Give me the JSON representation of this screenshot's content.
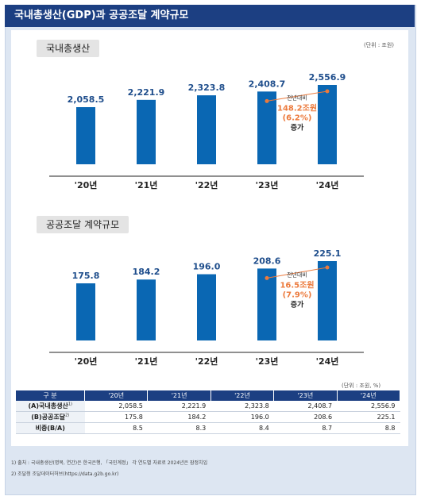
{
  "title": "국내총생산(GDP)과 공공조달 계약규모",
  "unit_top": "(단위 : 조원)",
  "unit_table": "(단위 : 조원, %)",
  "chart_data": [
    {
      "type": "bar",
      "title": "국내총생산",
      "categories": [
        "'20년",
        "'21년",
        "'22년",
        "'23년",
        "'24년"
      ],
      "values": [
        2058.5,
        2221.9,
        2323.8,
        2408.7,
        2556.9
      ],
      "value_labels": [
        "2,058.5",
        "2,221.9",
        "2,323.8",
        "2,408.7",
        "2,556.9"
      ],
      "annotation": {
        "line1": "전년대비",
        "line2": "148.2조원",
        "line3": "(6.2%)",
        "line4": "증가"
      },
      "color": "#0a67b3",
      "highlight_color": "#ec7a3c"
    },
    {
      "type": "bar",
      "title": "공공조달 계약규모",
      "categories": [
        "'20년",
        "'21년",
        "'22년",
        "'23년",
        "'24년"
      ],
      "values": [
        175.8,
        184.2,
        196.0,
        208.6,
        225.1
      ],
      "value_labels": [
        "175.8",
        "184.2",
        "196.0",
        "208.6",
        "225.1"
      ],
      "annotation": {
        "line1": "전년대비",
        "line2": "16.5조원",
        "line3": "(7.9%)",
        "line4": "증가"
      },
      "color": "#0a67b3",
      "highlight_color": "#ec7a3c"
    }
  ],
  "table": {
    "header": [
      "구 분",
      "'20년",
      "'21년",
      "'22년",
      "'23년",
      "'24년"
    ],
    "rows": [
      {
        "label": "(A)국내총생산",
        "sup": "1)",
        "values": [
          "2,058.5",
          "2,221.9",
          "2,323.8",
          "2,408.7",
          "2,556.9"
        ]
      },
      {
        "label": "(B)공공조달",
        "sup": "2)",
        "values": [
          "175.8",
          "184.2",
          "196.0",
          "208.6",
          "225.1"
        ]
      },
      {
        "label": "비중(B/A)",
        "sup": "",
        "values": [
          "8.5",
          "8.3",
          "8.4",
          "8.7",
          "8.8"
        ]
      }
    ]
  },
  "footnotes": [
    "1) 출처 : 국내총생산(명목, 연간)은 한국은행, 「국민계정」 각 연도별 자료로 2024년은 잠정치임",
    "2) 조달청 조달데이터허브(https://data.g2b.go.kr)"
  ]
}
